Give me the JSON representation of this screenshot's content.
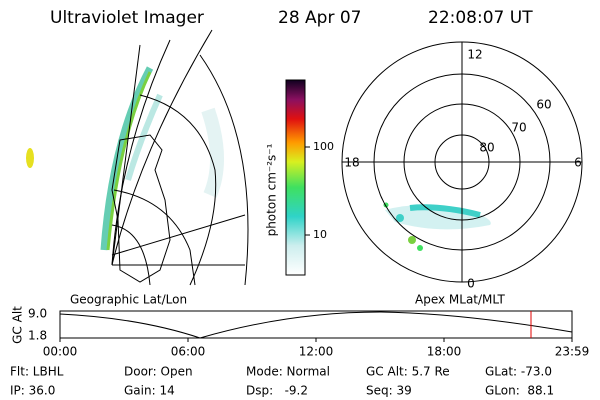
{
  "header": {
    "instrument": "Ultraviolet Imager",
    "date": "28 Apr 07",
    "time": "22:08:07 UT"
  },
  "colorbar": {
    "label": "photon cm⁻²s⁻¹",
    "ticks": [
      "100",
      "10"
    ]
  },
  "polar": {
    "mlt_labels": [
      "12",
      "18",
      "6",
      "0"
    ],
    "lat_labels": [
      "60",
      "70",
      "80"
    ]
  },
  "strip": {
    "left_label": "Geographic Lat/Lon",
    "right_label": "Apex MLat/MLT",
    "axis_label": "GC Alt",
    "y_labels": [
      "9.0",
      "1.8"
    ],
    "time_labels": [
      "00:00",
      "06:00",
      "12:00",
      "18:00",
      "23:59"
    ]
  },
  "info": {
    "rows": [
      [
        "Flt: LBHL",
        "Door: Open",
        "Mode: Normal",
        "GC Alt: 5.7 Re",
        "GLat: -73.0"
      ],
      [
        "IP: 36.0",
        "Gain: 14",
        "Dsp:   -9.2",
        "Seq: 39",
        "GLon:  88.1"
      ]
    ]
  }
}
